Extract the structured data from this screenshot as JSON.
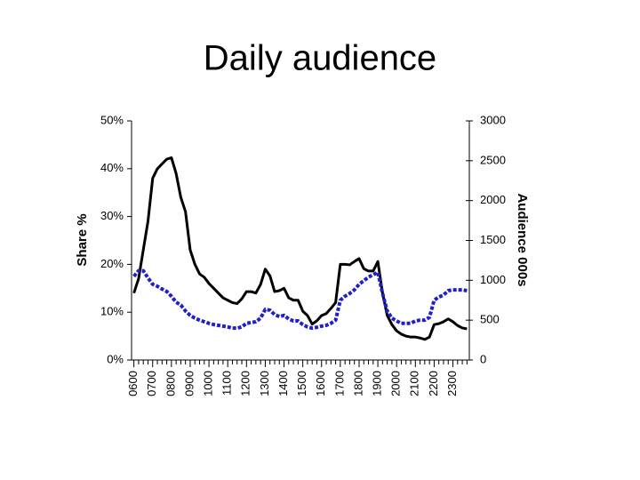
{
  "chart_data": {
    "type": "line",
    "title": "Daily audience",
    "ylabel": "Share %",
    "y2label": "Audience 000s",
    "categories": [
      "0600",
      null,
      null,
      null,
      "0700",
      null,
      null,
      null,
      "0800",
      null,
      null,
      null,
      "0900",
      null,
      null,
      null,
      "1000",
      null,
      null,
      null,
      "1100",
      null,
      null,
      null,
      "1200",
      null,
      null,
      null,
      "1300",
      null,
      null,
      null,
      "1400",
      null,
      null,
      null,
      "1500",
      null,
      null,
      null,
      "1600",
      null,
      null,
      null,
      "1700",
      null,
      null,
      null,
      "1800",
      null,
      null,
      null,
      "1900",
      null,
      null,
      null,
      "2000",
      null,
      null,
      null,
      "2100",
      null,
      null,
      null,
      "2200",
      null,
      null,
      null,
      "2300",
      null,
      null,
      null
    ],
    "series": [
      {
        "color": "#000000",
        "style": "solid",
        "values": [
          14,
          17,
          23,
          29,
          38,
          40,
          41,
          42,
          42.3,
          39,
          34,
          31,
          23,
          20,
          18,
          17.3,
          16,
          15,
          14,
          13,
          12.5,
          12,
          11.8,
          12.8,
          14.3,
          14.3,
          14,
          15.8,
          19,
          17.6,
          14.3,
          14.5,
          15,
          13,
          12.5,
          12.5,
          10.2,
          9.3,
          7.5,
          8.2,
          9.3,
          9.7,
          10.8,
          12,
          20,
          20,
          19.9,
          20.6,
          21.2,
          19.1,
          18.6,
          18.6,
          20.6,
          14,
          9.3,
          7.4,
          6.1,
          5.4,
          5,
          4.8,
          4.8,
          4.6,
          4.3,
          4.8,
          7.4,
          7.6,
          8,
          8.6,
          8,
          7.2,
          6.7,
          6.5
        ]
      },
      {
        "color": "#2020c8",
        "style": "dotted",
        "axis": "y2",
        "values": [
          1050,
          1120,
          1120,
          1030,
          950,
          925,
          890,
          860,
          800,
          725,
          690,
          615,
          560,
          525,
          500,
          480,
          460,
          445,
          435,
          425,
          415,
          400,
          400,
          415,
          460,
          470,
          480,
          525,
          635,
          625,
          570,
          545,
          560,
          515,
          490,
          490,
          445,
          415,
          400,
          410,
          425,
          435,
          460,
          500,
          750,
          800,
          835,
          880,
          950,
          995,
          1040,
          1070,
          1100,
          835,
          615,
          525,
          490,
          460,
          460,
          460,
          490,
          500,
          500,
          535,
          750,
          790,
          815,
          870,
          880,
          880,
          880,
          870
        ]
      }
    ],
    "ylim": [
      0,
      50
    ],
    "yticks": [
      {
        "value": 0,
        "label": "0%"
      },
      {
        "value": 10,
        "label": "10%"
      },
      {
        "value": 20,
        "label": "20%"
      },
      {
        "value": 30,
        "label": "30%"
      },
      {
        "value": 40,
        "label": "40%"
      },
      {
        "value": 50,
        "label": "50%"
      }
    ],
    "y2lim": [
      0,
      3000
    ],
    "y2ticks": [
      0,
      500,
      1000,
      1500,
      2000,
      2500,
      3000
    ],
    "grid": false
  }
}
